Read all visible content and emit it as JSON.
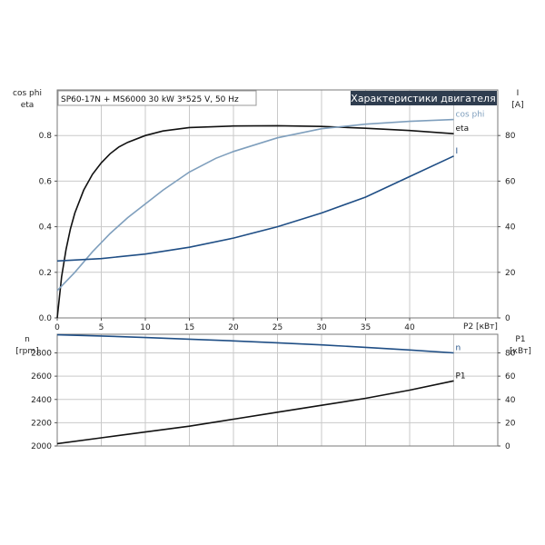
{
  "header": {
    "pump_label": "SP60-17N + MS6000   30 kW   3*525 V, 50 Hz",
    "badge": "Характеристики двигателя"
  },
  "colors": {
    "eta": "#111111",
    "cos_phi": "#7f9fbd",
    "I": "#1f4e85",
    "n": "#1f4e85",
    "P1": "#111111",
    "badge_bg": "#2f3d4f"
  },
  "chart_data": [
    {
      "type": "line",
      "xlabel": "P2 [кВт]",
      "xlim": [
        0,
        50
      ],
      "xticks": [
        0,
        5,
        10,
        15,
        20,
        25,
        30,
        35,
        40
      ],
      "left_axis": {
        "label_line1": "cos phi",
        "label_line2": "eta",
        "ylim": [
          0,
          1.0
        ],
        "ticks": [
          0.0,
          0.2,
          0.4,
          0.6,
          0.8
        ]
      },
      "right_axis": {
        "label_line1": "I",
        "label_line2": "[A]",
        "ylim": [
          0,
          100
        ],
        "ticks": [
          0,
          20,
          40,
          60,
          80
        ]
      },
      "series": [
        {
          "name": "eta",
          "axis": "left",
          "color_key": "eta",
          "x": [
            0,
            0.5,
            1,
            1.5,
            2,
            3,
            4,
            5,
            6,
            7,
            8,
            10,
            12,
            15,
            20,
            25,
            30,
            35,
            40,
            45
          ],
          "y": [
            0.0,
            0.18,
            0.3,
            0.39,
            0.46,
            0.56,
            0.63,
            0.68,
            0.72,
            0.75,
            0.77,
            0.8,
            0.82,
            0.835,
            0.842,
            0.843,
            0.84,
            0.832,
            0.822,
            0.808
          ]
        },
        {
          "name": "cos phi",
          "axis": "left",
          "color_key": "cos_phi",
          "x": [
            0,
            2,
            4,
            6,
            8,
            10,
            12,
            15,
            18,
            20,
            25,
            30,
            35,
            40,
            45
          ],
          "y": [
            0.12,
            0.2,
            0.29,
            0.37,
            0.44,
            0.5,
            0.56,
            0.64,
            0.7,
            0.73,
            0.79,
            0.83,
            0.85,
            0.862,
            0.87
          ]
        },
        {
          "name": "I",
          "axis": "right",
          "color_key": "I",
          "x": [
            0,
            5,
            10,
            15,
            20,
            25,
            30,
            35,
            40,
            45
          ],
          "y": [
            25,
            26,
            28,
            31,
            35,
            40,
            46,
            53,
            62,
            71
          ]
        }
      ]
    },
    {
      "type": "line",
      "xlim": [
        0,
        50
      ],
      "left_axis": {
        "label_line1": "n",
        "label_line2": "[rpm]",
        "ylim": [
          2000,
          2960
        ],
        "ticks": [
          2000,
          2200,
          2400,
          2600,
          2800
        ]
      },
      "right_axis": {
        "label_line1": "P1",
        "label_line2": "[кВт]",
        "ylim": [
          0,
          96
        ],
        "ticks": [
          0,
          20,
          40,
          60,
          80
        ]
      },
      "series": [
        {
          "name": "n",
          "axis": "left",
          "color_key": "n",
          "x": [
            0,
            5,
            10,
            15,
            20,
            25,
            30,
            35,
            40,
            45
          ],
          "y": [
            2955,
            2945,
            2932,
            2918,
            2903,
            2887,
            2869,
            2848,
            2825,
            2800
          ]
        },
        {
          "name": "P1",
          "axis": "right",
          "color_key": "P1",
          "x": [
            0,
            5,
            10,
            15,
            20,
            25,
            30,
            35,
            40,
            45
          ],
          "y": [
            2,
            7,
            12,
            17,
            23,
            29,
            35,
            41,
            48,
            56
          ]
        }
      ]
    }
  ]
}
